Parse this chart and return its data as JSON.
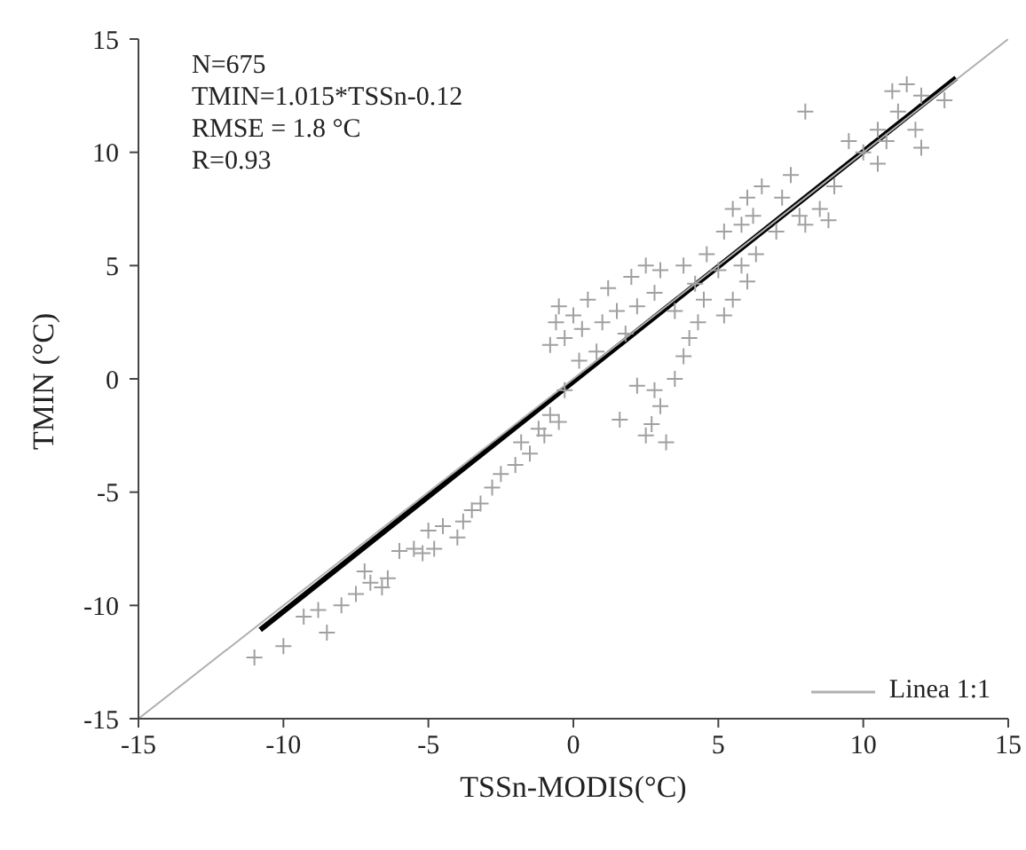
{
  "chart_data": {
    "type": "scatter",
    "xlabel": "TSSn-MODIS(°C)",
    "ylabel": "TMIN (°C)",
    "annotations": [
      "N=675",
      "TMIN=1.015*TSSn-0.12",
      "RMSE = 1.8 °C",
      "R=0.93"
    ],
    "xlim": [
      -15,
      15
    ],
    "ylim": [
      -15,
      15
    ],
    "xticks": [
      -15,
      -10,
      -5,
      0,
      5,
      10,
      15
    ],
    "yticks": [
      -15,
      -10,
      -5,
      0,
      5,
      10,
      15
    ],
    "grid": false,
    "legend": "bottom right",
    "series": [
      {
        "marker": "cross",
        "color": "#a0a0a0",
        "x": [
          -11,
          -10,
          -9.3,
          -8.8,
          -8.5,
          -8,
          -7.5,
          -7,
          -7.2,
          -6.6,
          -6.4,
          -6,
          -5.5,
          -5.2,
          -5,
          -4.8,
          -4.5,
          -4,
          -3.8,
          -3.5,
          -3.2,
          -2.8,
          -2.5,
          -2,
          -1.8,
          -1.5,
          -1.2,
          -1,
          -0.8,
          -0.5,
          -0.3,
          -0.8,
          -0.6,
          -0.5,
          -0.3,
          0,
          0.2,
          0.3,
          0.5,
          0.8,
          1,
          1.2,
          1.5,
          1.8,
          2,
          2.2,
          2.5,
          2.8,
          3,
          1.6,
          2.5,
          2.7,
          3,
          3.2,
          2.8,
          3.5,
          2.2,
          3.8,
          4,
          4.3,
          4.5,
          3.5,
          3.8,
          4.2,
          4.6,
          5,
          5.2,
          5.5,
          5.8,
          6,
          6.2,
          6.5,
          5.2,
          5.5,
          6,
          6.3,
          5.8,
          7,
          7.2,
          7.5,
          7.8,
          8,
          8.5,
          9,
          8.8,
          9.5,
          10,
          10.5,
          10.8,
          11,
          11.5,
          12,
          11.2,
          11.8,
          12,
          8,
          10.5,
          12.8
        ],
        "values": [
          -12.3,
          -11.8,
          -10.5,
          -10.2,
          -11.2,
          -10,
          -9.5,
          -9,
          -8.5,
          -9.2,
          -8.8,
          -7.6,
          -7.5,
          -7.7,
          -6.7,
          -7.5,
          -6.5,
          -7,
          -6.3,
          -5.8,
          -5.5,
          -4.8,
          -4.2,
          -3.8,
          -2.8,
          -3.3,
          -2.2,
          -2.5,
          -1.6,
          -1.9,
          -0.5,
          1.5,
          2.5,
          3.2,
          1.8,
          2.8,
          0.8,
          2.2,
          3.5,
          1.2,
          2.5,
          4,
          3,
          2,
          4.5,
          3.2,
          5,
          3.8,
          4.8,
          -1.8,
          -2.5,
          -2,
          -1.2,
          -2.8,
          -0.5,
          0,
          -0.3,
          1,
          1.8,
          2.5,
          3.5,
          3,
          5,
          4.2,
          5.5,
          4.8,
          6.5,
          7.5,
          6.8,
          8,
          7.2,
          8.5,
          2.8,
          3.5,
          4.3,
          5.5,
          5,
          6.5,
          8,
          9,
          7.2,
          6.8,
          7.5,
          8.5,
          7,
          10.5,
          10,
          11,
          10.5,
          12.7,
          13,
          12.5,
          11.8,
          11,
          10.2,
          11.8,
          9.5,
          12.3
        ]
      },
      {
        "type": "line",
        "color": "#000000",
        "x": [
          -10.8,
          13.2
        ],
        "values": [
          -11.08,
          13.28
        ]
      },
      {
        "type": "line",
        "name": "Linea 1:1",
        "color": "#b0b0b0",
        "line_style": "solid",
        "x": [
          -15,
          15
        ],
        "values": [
          -15,
          15
        ]
      }
    ]
  }
}
